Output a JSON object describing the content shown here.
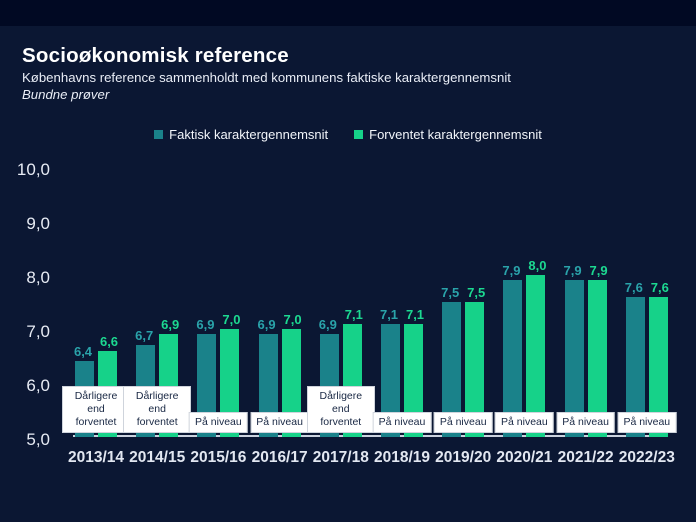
{
  "page": {
    "title": "Socioøkonomisk reference",
    "subtitle": "Københavns reference sammenholdt med kommunens faktiske karaktergennemsnit",
    "subtitle2": "Bundne prøver"
  },
  "colors": {
    "background_top": "#010923",
    "panel_background": "#0b1733",
    "axis_line": "#ccd3df",
    "text_primary": "#ffffff",
    "text_secondary": "#e9edf6",
    "annotation_box_bg": "#ffffff",
    "annotation_box_text": "#182743"
  },
  "chart_data": {
    "type": "bar",
    "title": "Socioøkonomisk reference",
    "subtitle": "Københavns reference sammenholdt med kommunens faktiske karaktergennemsnit",
    "note": "Bundne prøver",
    "categories": [
      "2013/14",
      "2014/15",
      "2015/16",
      "2016/17",
      "2017/18",
      "2018/19",
      "2019/20",
      "2020/21",
      "2021/22",
      "2022/23"
    ],
    "series": [
      {
        "name": "Faktisk karaktergennemsnit",
        "color": "#1a828a",
        "label_color": "#2aa3aa",
        "values": [
          6.4,
          6.7,
          6.9,
          6.9,
          6.9,
          7.1,
          7.5,
          7.9,
          7.9,
          7.6
        ]
      },
      {
        "name": "Forventet karaktergennemsnit",
        "color": "#16d289",
        "label_color": "#1cd991",
        "values": [
          6.6,
          6.9,
          7.0,
          7.0,
          7.1,
          7.1,
          7.5,
          8.0,
          7.9,
          7.6
        ]
      }
    ],
    "annotations": [
      "Dårligere end forventet",
      "Dårligere end forventet",
      "På niveau",
      "På niveau",
      "Dårligere end forventet",
      "På niveau",
      "På niveau",
      "På niveau",
      "På niveau",
      "På niveau"
    ],
    "y_ticks": [
      10,
      9,
      8,
      7,
      6,
      5
    ],
    "ylim": [
      5,
      10
    ],
    "decimal_separator": ",",
    "grid": false,
    "legend_position": "top"
  }
}
